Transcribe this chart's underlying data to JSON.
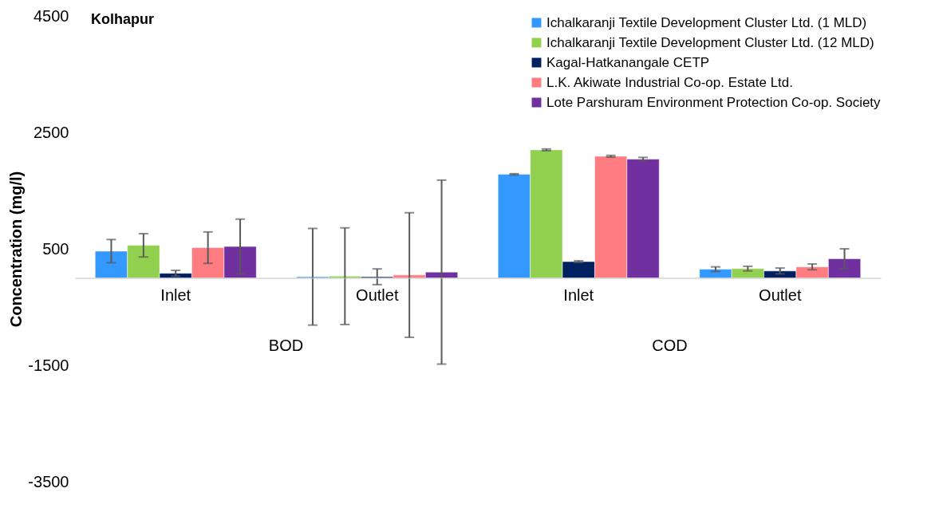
{
  "chart_data": {
    "type": "bar",
    "title": "Kolhapur",
    "ylabel": "Concentration (mg/l)",
    "categories": [
      "Inlet",
      "Outlet",
      "Inlet",
      "Outlet"
    ],
    "annotations": [
      "BOD",
      "COD"
    ],
    "ylim": [
      -3500,
      4500
    ],
    "yticks": [
      -3500,
      -1500,
      500,
      2500,
      4500
    ],
    "grid": false,
    "legend": "top right",
    "series": [
      {
        "name": "Ichalkaranji Textile Development Cluster Ltd. (1 MLD)",
        "color": "#3399ff",
        "values": [
          460,
          20,
          1780,
          150
        ],
        "errors": [
          200,
          830,
          10,
          40
        ]
      },
      {
        "name": "Ichalkaranji Textile Development Cluster Ltd. (12 MLD)",
        "color": "#92d050",
        "values": [
          560,
          30,
          2200,
          160
        ],
        "errors": [
          200,
          830,
          15,
          40
        ]
      },
      {
        "name": "Kagal-Hatkanangale CETP",
        "color": "#002060",
        "values": [
          80,
          20,
          280,
          120
        ],
        "errors": [
          50,
          135,
          15,
          50
        ]
      },
      {
        "name": "L.K. Akiwate Industrial Co-op. Estate Ltd.",
        "color": "#ff7c80",
        "values": [
          520,
          50,
          2090,
          190
        ],
        "errors": [
          270,
          1070,
          15,
          50
        ]
      },
      {
        "name": "Lote Parshuram Environment Protection Co-op. Society",
        "color": "#7030a0",
        "values": [
          540,
          100,
          2040,
          330
        ],
        "errors": [
          470,
          1580,
          30,
          170
        ]
      }
    ]
  }
}
